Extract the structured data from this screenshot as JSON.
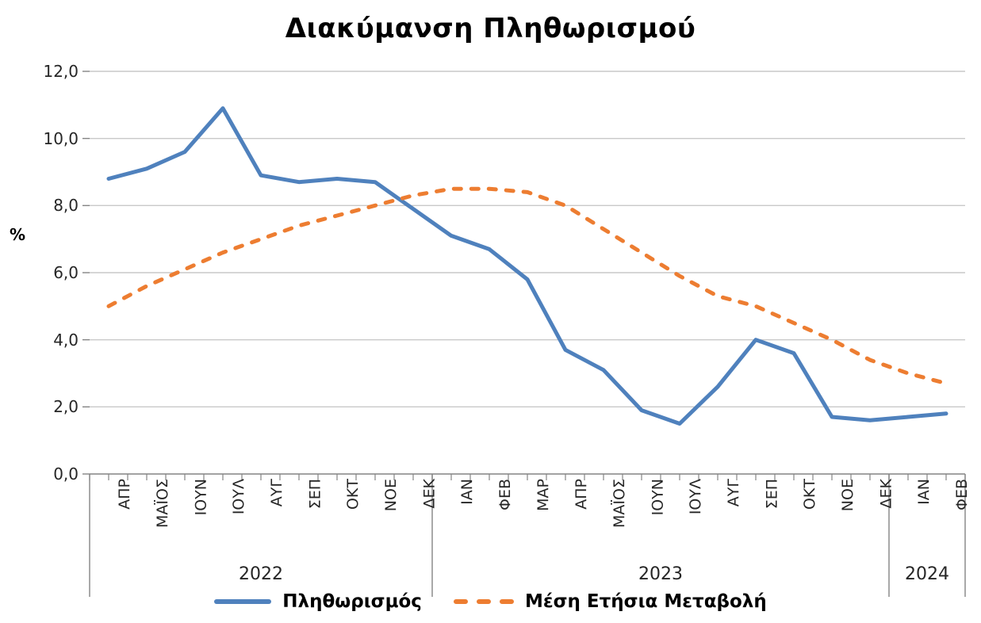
{
  "chart_data": {
    "type": "line",
    "title": "Διακύμανση Πληθωρισμού",
    "ylabel": "%",
    "ylim": [
      0,
      12
    ],
    "ytick_step": 2,
    "ytick_labels": [
      "0,0",
      "2,0",
      "4,0",
      "6,0",
      "8,0",
      "10,0",
      "12,0"
    ],
    "grid": true,
    "legend_position": "bottom",
    "x_groups": [
      {
        "year": "2022",
        "months": [
          "ΑΠΡ",
          "ΜΑΪΟΣ",
          "ΙΟΥΝ",
          "ΙΟΥΛ",
          "ΑΥΓ",
          "ΣΕΠ",
          "ΟΚΤ",
          "ΝΟΕ",
          "ΔΕΚ"
        ]
      },
      {
        "year": "2023",
        "months": [
          "ΙΑΝ",
          "ΦΕΒ",
          "ΜΑΡ",
          "ΑΠΡ",
          "ΜΑΪΟΣ",
          "ΙΟΥΝ",
          "ΙΟΥΛ",
          "ΑΥΓ",
          "ΣΕΠ",
          "ΟΚΤ",
          "ΝΟΕ",
          "ΔΕΚ"
        ]
      },
      {
        "year": "2024",
        "months": [
          "ΙΑΝ",
          "ΦΕΒ"
        ]
      }
    ],
    "series": [
      {
        "name": "Πληθωρισμός",
        "color": "#4F81BD",
        "line_style": "solid",
        "values": [
          8.8,
          9.1,
          9.6,
          10.9,
          8.9,
          8.7,
          8.8,
          8.7,
          7.9,
          7.1,
          6.7,
          5.8,
          3.7,
          3.1,
          1.9,
          1.5,
          2.6,
          4.0,
          3.6,
          1.7,
          1.6,
          1.7,
          1.8
        ]
      },
      {
        "name": "Μέση Ετήσια Μεταβολή",
        "color": "#ED7D31",
        "line_style": "dashed",
        "values": [
          5.0,
          5.6,
          6.1,
          6.6,
          7.0,
          7.4,
          7.7,
          8.0,
          8.3,
          8.5,
          8.5,
          8.4,
          8.0,
          7.3,
          6.6,
          5.9,
          5.3,
          5.0,
          4.5,
          4.0,
          3.4,
          3.0,
          2.7
        ]
      }
    ],
    "colors": {
      "gridline": "#C9C9C9",
      "axis": "#848484",
      "text": "#262626"
    }
  }
}
